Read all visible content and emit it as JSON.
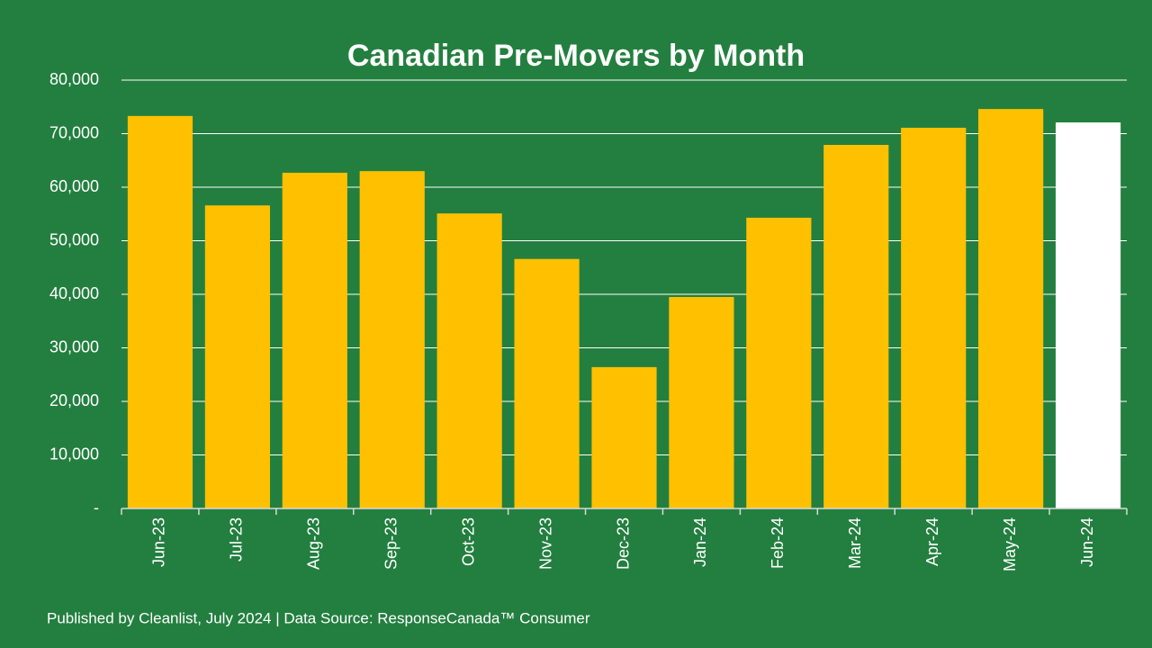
{
  "chart_data": {
    "type": "bar",
    "title": "Canadian Pre-Movers by Month",
    "footer": "Published by Cleanlist, July 2024 | Data Source: ResponseCanada™ Consumer",
    "categories": [
      "Jun-23",
      "Jul-23",
      "Aug-23",
      "Sep-23",
      "Oct-23",
      "Nov-23",
      "Dec-23",
      "Jan-24",
      "Feb-24",
      "Mar-24",
      "Apr-24",
      "May-24",
      "Jun-24"
    ],
    "values": [
      73300,
      56600,
      62700,
      63000,
      55100,
      46600,
      26400,
      39500,
      54300,
      67900,
      71100,
      74600,
      72100
    ],
    "colors": [
      "#ffc000",
      "#ffc000",
      "#ffc000",
      "#ffc000",
      "#ffc000",
      "#ffc000",
      "#ffc000",
      "#ffc000",
      "#ffc000",
      "#ffc000",
      "#ffc000",
      "#ffc000",
      "#ffffff"
    ],
    "ylim": [
      0,
      80000
    ],
    "yticks": [
      {
        "value": 0,
        "label": "-"
      },
      {
        "value": 10000,
        "label": "10,000"
      },
      {
        "value": 20000,
        "label": "20,000"
      },
      {
        "value": 30000,
        "label": "30,000"
      },
      {
        "value": 40000,
        "label": "40,000"
      },
      {
        "value": 50000,
        "label": "50,000"
      },
      {
        "value": 60000,
        "label": "60,000"
      },
      {
        "value": 70000,
        "label": "70,000"
      },
      {
        "value": 80000,
        "label": "80,000"
      }
    ],
    "grid": true
  }
}
